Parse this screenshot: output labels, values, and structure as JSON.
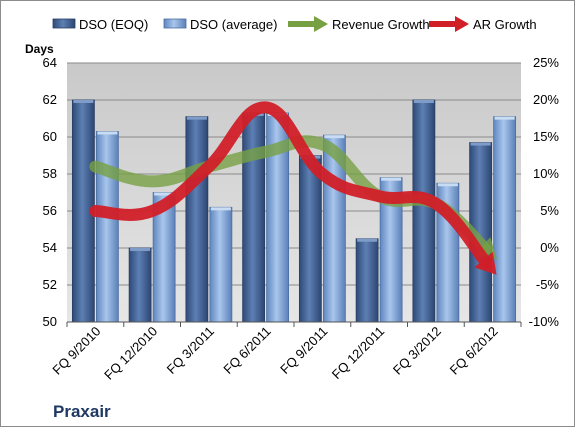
{
  "chart_data": {
    "type": "bar",
    "title": "",
    "company": "Praxair",
    "categories": [
      "FQ 9/2010",
      "FQ 12/2010",
      "FQ 3/2011",
      "FQ 6/2011",
      "FQ 9/2011",
      "FQ 12/2011",
      "FQ 3/2012",
      "FQ 6/2012"
    ],
    "ylabel": "Days",
    "ylim": [
      50,
      64
    ],
    "yticks": [
      50,
      52,
      54,
      56,
      58,
      60,
      62,
      64
    ],
    "y2lim": [
      -10,
      25
    ],
    "y2ticks": [
      "-10%",
      "-5%",
      "0%",
      "5%",
      "10%",
      "15%",
      "20%",
      "25%"
    ],
    "y2ticks_values": [
      -10,
      -5,
      0,
      5,
      10,
      15,
      20,
      25
    ],
    "grid": true,
    "legend_position": "top",
    "series": [
      {
        "name": "DSO (EOQ)",
        "type": "bar",
        "axis": "left",
        "color": "#4f6fa0",
        "values": [
          62.0,
          54.0,
          61.1,
          61.3,
          59.0,
          54.5,
          62.0,
          59.7
        ]
      },
      {
        "name": "DSO (average)",
        "type": "bar",
        "axis": "left",
        "color": "#8eb1df",
        "values": [
          60.3,
          57.0,
          56.2,
          61.3,
          60.1,
          57.8,
          57.5,
          61.1
        ]
      },
      {
        "name": "Revenue Growth",
        "type": "line",
        "axis": "right",
        "color": "#77a043",
        "values": [
          11,
          9,
          11,
          13,
          14,
          7,
          6,
          -1
        ]
      },
      {
        "name": "AR Growth",
        "type": "line",
        "axis": "right",
        "color": "#d11f28",
        "values": [
          5,
          5,
          11,
          19,
          10,
          7,
          6,
          -3
        ]
      }
    ]
  }
}
